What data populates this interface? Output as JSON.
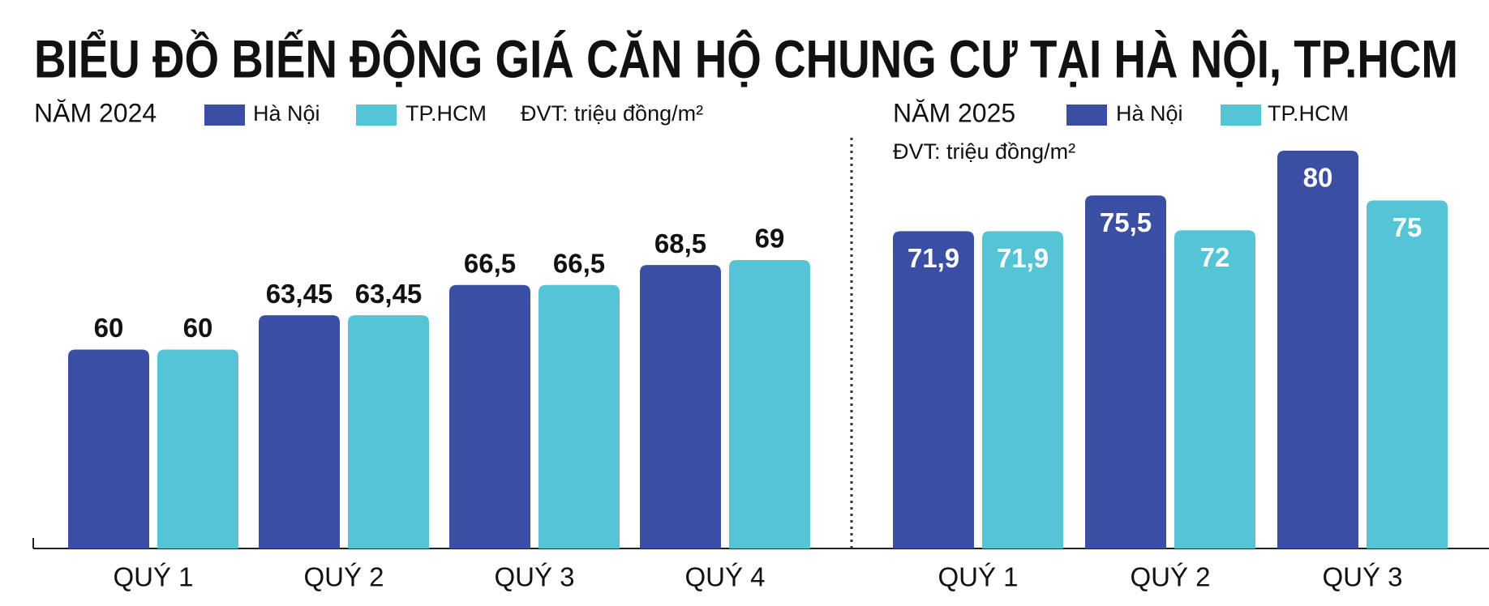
{
  "title": "BIỂU ĐỒ BIẾN ĐỘNG GIÁ CĂN HỘ CHUNG CƯ TẠI HÀ NỘI, TP.HCM",
  "chart_data": [
    {
      "type": "bar",
      "subtitle": "NĂM 2024",
      "unit": "ĐVT: triệu đồng/m²",
      "categories": [
        "QUÝ 1",
        "QUÝ 2",
        "QUÝ 3",
        "QUÝ 4"
      ],
      "series": [
        {
          "name": "Hà Nội",
          "color": "#3a4fa3",
          "values": [
            60,
            63.45,
            66.5,
            68.5
          ],
          "value_labels": [
            "60",
            "63,45",
            "66,5",
            "68,5"
          ]
        },
        {
          "name": "TP.HCM",
          "color": "#55c4d4",
          "values": [
            60,
            63.45,
            66.5,
            69
          ],
          "value_labels": [
            "60",
            "63,45",
            "66,5",
            "69"
          ]
        }
      ],
      "ylim": [
        40,
        80
      ],
      "label_position": "outside"
    },
    {
      "type": "bar",
      "subtitle": "NĂM 2025",
      "unit": "ĐVT: triệu đồng/m²",
      "categories": [
        "QUÝ 1",
        "QUÝ 2",
        "QUÝ 3"
      ],
      "series": [
        {
          "name": "Hà Nội",
          "color": "#3a4fa3",
          "values": [
            71.9,
            75.5,
            80
          ],
          "value_labels": [
            "71,9",
            "75,5",
            "80"
          ]
        },
        {
          "name": "TP.HCM",
          "color": "#55c4d4",
          "values": [
            71.9,
            72,
            75
          ],
          "value_labels": [
            "71,9",
            "72",
            "75"
          ]
        }
      ],
      "ylim": [
        40,
        80
      ],
      "label_position": "inside"
    }
  ]
}
